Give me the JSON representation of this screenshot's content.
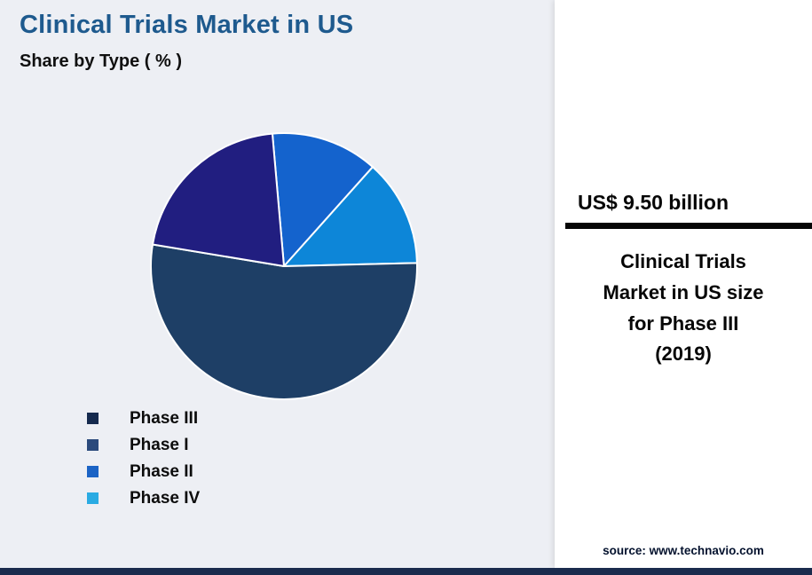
{
  "page": {
    "title": "Clinical Trials Market in US",
    "subtitle": "Share by Type ( % )",
    "source_credit": "source: www.technavio.com"
  },
  "highlight": {
    "value": "US$ 9.50 billion",
    "caption_lines": [
      "Clinical Trials",
      "Market in US size",
      "for Phase III",
      "(2019)"
    ]
  },
  "chart_data": {
    "type": "pie",
    "title": "Clinical Trials Market in US",
    "subtitle": "Share by Type ( % )",
    "unit": "percent share",
    "direction": "clockwise",
    "start_angle_deg": -5,
    "slices": [
      {
        "label": "Phase II",
        "value": 13,
        "color": "#1463cd"
      },
      {
        "label": "Phase IV",
        "value": 13,
        "color": "#0d86d8"
      },
      {
        "label": "Phase III",
        "value": 53,
        "color": "#1e3f66"
      },
      {
        "label": "Phase I",
        "value": 21,
        "color": "#211e80"
      }
    ],
    "legend_position": "bottom-left",
    "legend": [
      {
        "label": "Phase III",
        "color": "#152a4e"
      },
      {
        "label": "Phase I",
        "color": "#2b4a7c"
      },
      {
        "label": "Phase II",
        "color": "#1b63c5"
      },
      {
        "label": "Phase IV",
        "color": "#2aabe3"
      }
    ],
    "annotation": "US$ 9.50 billion — Clinical Trials Market in US size for Phase III (2019)"
  },
  "colors": {
    "background": "#edeff4",
    "panel": "#ffffff",
    "title_text": "#1e5a8e",
    "footer_bar": "#1a2b4d",
    "rule": "#050505",
    "slice_stroke": "#ffffff"
  }
}
